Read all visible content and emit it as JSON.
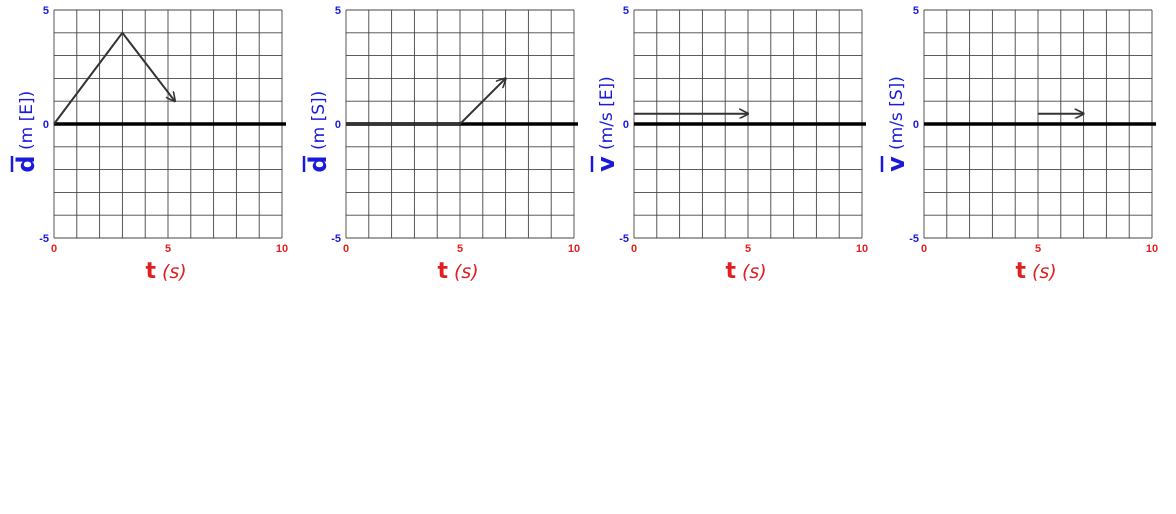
{
  "chart_data": [
    {
      "type": "line",
      "grid": true,
      "xlim": [
        0,
        10
      ],
      "ylim": [
        -5,
        5
      ],
      "x_ticks": [
        "0",
        "5",
        "10"
      ],
      "y_ticks": [
        "5",
        "0",
        "-5"
      ],
      "ylabel": {
        "symbol": "d",
        "unit": "(m [E])"
      },
      "xlabel": {
        "symbol": "t",
        "unit": "(s)"
      },
      "series": [
        {
          "x": [
            0,
            3,
            5.3
          ],
          "y": [
            0,
            4,
            1
          ]
        }
      ]
    },
    {
      "type": "line",
      "grid": true,
      "xlim": [
        0,
        10
      ],
      "ylim": [
        -5,
        5
      ],
      "x_ticks": [
        "0",
        "5",
        "10"
      ],
      "y_ticks": [
        "5",
        "0",
        "-5"
      ],
      "ylabel": {
        "symbol": "d",
        "unit": "(m [S])"
      },
      "xlabel": {
        "symbol": "t",
        "unit": "(s)"
      },
      "series": [
        {
          "x": [
            0,
            5,
            7
          ],
          "y": [
            0,
            0,
            2
          ]
        }
      ]
    },
    {
      "type": "line",
      "grid": true,
      "xlim": [
        0,
        10
      ],
      "ylim": [
        -5,
        5
      ],
      "x_ticks": [
        "0",
        "5",
        "10"
      ],
      "y_ticks": [
        "5",
        "0",
        "-5"
      ],
      "ylabel": {
        "symbol": "v",
        "unit": "(m/s [E])"
      },
      "xlabel": {
        "symbol": "t",
        "unit": "(s)"
      },
      "series": [
        {
          "x": [
            0,
            5
          ],
          "y": [
            0.45,
            0.45
          ]
        }
      ]
    },
    {
      "type": "line",
      "grid": true,
      "xlim": [
        0,
        10
      ],
      "ylim": [
        -5,
        5
      ],
      "x_ticks": [
        "0",
        "5",
        "10"
      ],
      "y_ticks": [
        "5",
        "0",
        "-5"
      ],
      "ylabel": {
        "symbol": "v",
        "unit": "(m/s [S])"
      },
      "xlabel": {
        "symbol": "t",
        "unit": "(s)"
      },
      "series": [
        {
          "x": [
            5,
            7
          ],
          "y": [
            0.45,
            0.45
          ]
        }
      ]
    }
  ]
}
